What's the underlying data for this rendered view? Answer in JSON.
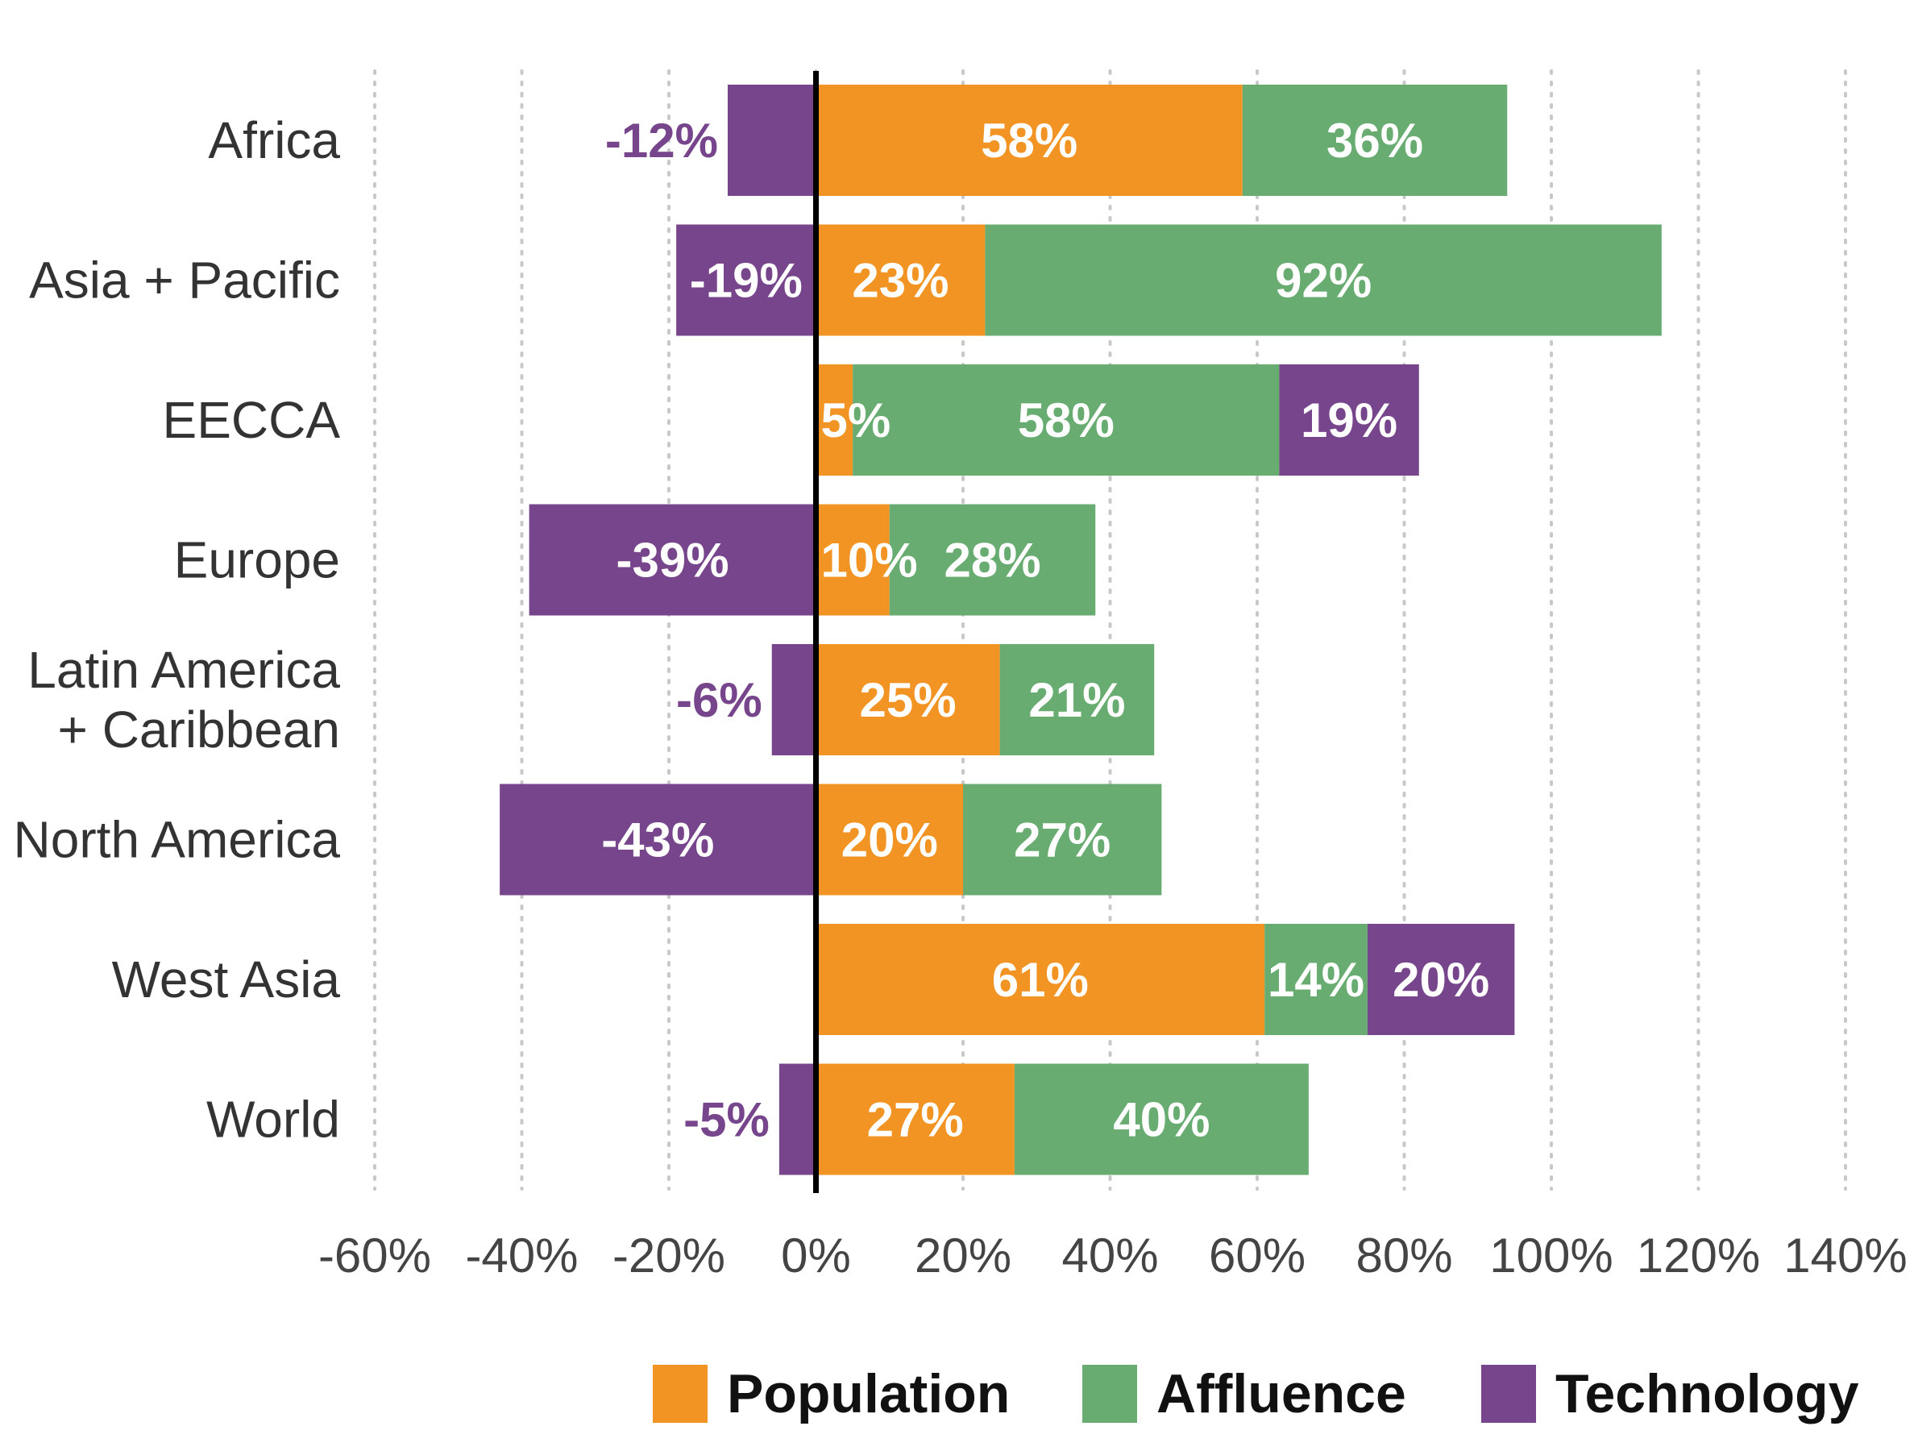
{
  "chart_data": {
    "type": "bar",
    "orientation": "horizontal",
    "stacked": true,
    "title": "",
    "xlabel": "",
    "ylabel": "",
    "xlim": [
      -60,
      140
    ],
    "x_ticks": [
      -60,
      -40,
      -20,
      0,
      20,
      40,
      60,
      80,
      100,
      120,
      140
    ],
    "x_tick_labels": [
      "-60%",
      "-40%",
      "-20%",
      "0%",
      "20%",
      "40%",
      "60%",
      "80%",
      "100%",
      "120%",
      "140%"
    ],
    "grid": "vertical dotted",
    "legend_position": "bottom-right",
    "categories": [
      "Africa",
      "Asia + Pacific",
      "EECCA",
      "Europe",
      "Latin America\n+ Caribbean",
      "North America",
      "West Asia",
      "World"
    ],
    "series": [
      {
        "name": "Population",
        "color": "#F29423",
        "values": [
          58,
          23,
          5,
          10,
          25,
          20,
          61,
          27
        ],
        "labels": [
          "58%",
          "23%",
          "5%",
          "10%",
          "25%",
          "20%",
          "61%",
          "27%"
        ]
      },
      {
        "name": "Affluence",
        "color": "#68AC72",
        "values": [
          36,
          92,
          58,
          28,
          21,
          27,
          14,
          40
        ],
        "labels": [
          "36%",
          "92%",
          "58%",
          "28%",
          "21%",
          "27%",
          "14%",
          "40%"
        ]
      },
      {
        "name": "Technology",
        "color": "#77458B",
        "values": [
          -12,
          -19,
          19,
          -39,
          -6,
          -43,
          20,
          -5
        ],
        "labels": [
          "-12%",
          "-19%",
          "19%",
          "-39%",
          "-6%",
          "-43%",
          "20%",
          "-5%"
        ]
      }
    ],
    "legend": [
      "Population",
      "Affluence",
      "Technology"
    ]
  }
}
